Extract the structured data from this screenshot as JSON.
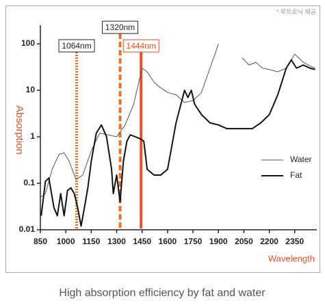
{
  "chart_data": {
    "type": "line",
    "note": "* 루트로닉 제공",
    "caption": "High absorption efficiency by fat and water",
    "y_label": "Absorption",
    "x_label": "Wavelength",
    "log_y": true,
    "legend": "right",
    "xlim": [
      850,
      2480
    ],
    "ylim": [
      0.01,
      250
    ],
    "xticks": [
      850,
      1000,
      1150,
      1300,
      1450,
      1600,
      1750,
      1900,
      2050,
      2200,
      2350
    ],
    "yticks": [
      0.01,
      0.1,
      1,
      10,
      100
    ],
    "markers": [
      {
        "value": 1064,
        "label": "1064nm",
        "style": "dotted",
        "color": "#e8742c"
      },
      {
        "value": 1320,
        "label": "1320nm",
        "style": "dashed",
        "color": "#e8742c"
      },
      {
        "value": 1444,
        "label": "1444nm",
        "style": "solid",
        "color": "#e8502a"
      }
    ],
    "series": [
      {
        "name": "Water",
        "color": "#555555",
        "x": [
          850,
          880,
          920,
          960,
          990,
          1020,
          1060,
          1100,
          1150,
          1200,
          1250,
          1300,
          1350,
          1400,
          1430,
          1450,
          1480,
          1520,
          1550,
          1600,
          1650,
          1700,
          1750,
          1800,
          1850,
          1880,
          1900,
          1950,
          2040,
          2080,
          2120,
          2160,
          2200,
          2250,
          2300,
          2350,
          2400,
          2450,
          2470
        ],
        "values": [
          0.05,
          0.06,
          0.2,
          0.42,
          0.45,
          0.3,
          0.12,
          0.15,
          0.5,
          1.2,
          1.1,
          1.0,
          1.8,
          5,
          15,
          30,
          25,
          15,
          12,
          9,
          8,
          5.5,
          6,
          9,
          30,
          60,
          100,
          null,
          50,
          35,
          40,
          30,
          28,
          25,
          30,
          60,
          40,
          32,
          30
        ]
      },
      {
        "name": "Fat",
        "color": "#111111",
        "x": [
          855,
          880,
          900,
          930,
          950,
          970,
          990,
          1010,
          1030,
          1050,
          1070,
          1090,
          1110,
          1130,
          1150,
          1180,
          1210,
          1240,
          1270,
          1280,
          1300,
          1320,
          1340,
          1360,
          1380,
          1410,
          1440,
          1460,
          1480,
          1520,
          1560,
          1600,
          1650,
          1700,
          1720,
          1740,
          1760,
          1800,
          1850,
          1900,
          1950,
          2000,
          2050,
          2100,
          2150,
          2200,
          2250,
          2300,
          2330,
          2360,
          2400,
          2440,
          2470
        ],
        "values": [
          0.02,
          0.11,
          0.13,
          0.03,
          0.02,
          0.06,
          0.02,
          0.07,
          0.08,
          0.06,
          0.03,
          0.012,
          0.03,
          0.08,
          0.3,
          1.2,
          1.8,
          1.0,
          0.2,
          0.06,
          0.15,
          0.04,
          0.3,
          0.8,
          1.1,
          1.0,
          0.9,
          0.8,
          0.2,
          0.15,
          0.15,
          0.2,
          2,
          10,
          7,
          10,
          5,
          3,
          2,
          1.8,
          1.5,
          1.5,
          1.5,
          1.5,
          2,
          3,
          8,
          30,
          45,
          30,
          35,
          30,
          28
        ]
      }
    ]
  }
}
